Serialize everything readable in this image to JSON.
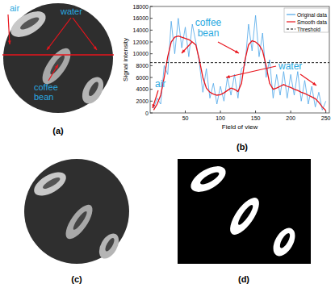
{
  "chart_data": {
    "type": "line",
    "xlabel": "Field of view",
    "ylabel": "Signal intensity",
    "x": [
      5,
      10,
      15,
      20,
      25,
      30,
      35,
      40,
      45,
      50,
      55,
      60,
      65,
      70,
      75,
      80,
      85,
      90,
      95,
      100,
      105,
      110,
      115,
      120,
      125,
      130,
      135,
      140,
      145,
      150,
      155,
      160,
      165,
      170,
      175,
      180,
      185,
      190,
      195,
      200,
      205,
      210,
      215,
      220,
      225,
      230,
      235,
      240,
      245,
      250
    ],
    "series": [
      {
        "name": "Original data",
        "color": "#4da6e8",
        "values": [
          800,
          2500,
          1500,
          8000,
          6500,
          15500,
          10000,
          16000,
          11000,
          14500,
          9500,
          15000,
          12000,
          8500,
          3500,
          7500,
          2500,
          5000,
          1500,
          4500,
          2000,
          6000,
          3000,
          6500,
          2500,
          7500,
          8000,
          15000,
          10500,
          16500,
          9500,
          13500,
          6000,
          9000,
          2500,
          6500,
          3000,
          7000,
          2500,
          6500,
          3000,
          7000,
          2000,
          5500,
          1500,
          4500,
          1000,
          3500,
          500,
          2000
        ]
      },
      {
        "name": "Smooth data",
        "color": "#e8141c",
        "values": [
          500,
          1500,
          3000,
          6000,
          9500,
          12000,
          12800,
          13000,
          12800,
          12600,
          12400,
          12000,
          11500,
          9000,
          6000,
          4200,
          3500,
          3200,
          3000,
          3100,
          3400,
          3800,
          4200,
          4000,
          3600,
          5000,
          9000,
          11500,
          12200,
          12000,
          11500,
          10500,
          8000,
          5000,
          4000,
          4200,
          4500,
          4800,
          4500,
          4300,
          4000,
          3800,
          3500,
          3300,
          3000,
          2700,
          2400,
          1800,
          1000,
          400
        ]
      },
      {
        "name": "Threshold",
        "color": "#000000",
        "line_style": "dashed",
        "x": [
          0,
          255
        ],
        "values": [
          8500,
          8500
        ]
      }
    ],
    "xlim": [
      0,
      255
    ],
    "xticks": [
      50,
      100,
      150,
      200,
      250
    ],
    "ylim": [
      0,
      18000
    ],
    "yticks": [
      0,
      2000,
      4000,
      6000,
      8000,
      10000,
      12000,
      14000,
      16000,
      18000
    ],
    "legend": "top-right",
    "annotations": [
      "coffee bean",
      "water",
      "air"
    ]
  },
  "figure": {
    "panel_labels": [
      "(a)",
      "(b)",
      "(c)",
      "(d)"
    ],
    "panel_a_annotations": [
      "air",
      "water",
      "coffee bean"
    ]
  }
}
